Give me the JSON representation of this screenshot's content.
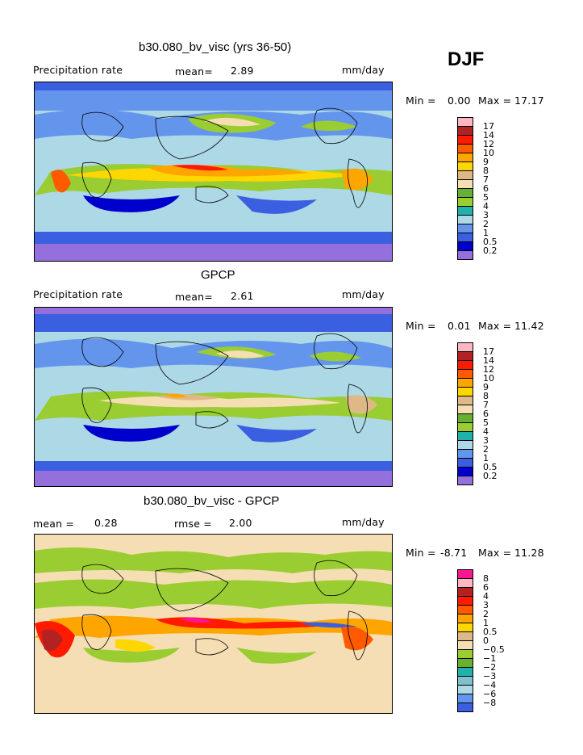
{
  "season": "DJF",
  "colors": {
    "full": [
      "#9370db",
      "#0000cd",
      "#3a5fe0",
      "#6495ed",
      "#add8e6",
      "#20b2aa",
      "#9acd32",
      "#66b032",
      "#f5deb3",
      "#deb887",
      "#ffd700",
      "#ffa500",
      "#ff5a00",
      "#ff1a00",
      "#b22222",
      "#ffb6c1",
      "#ff1493"
    ],
    "diff": [
      "#9370db",
      "#0000cd",
      "#3a5fe0",
      "#6495ed",
      "#add8e6",
      "#7ec0cc",
      "#20b2aa",
      "#66b032",
      "#9acd32",
      "#f5deb3",
      "#deb887",
      "#ffd700",
      "#ffa500",
      "#ff5a00",
      "#ff1a00",
      "#b22222",
      "#ffb6c1",
      "#ff1493"
    ]
  },
  "panels": [
    {
      "title": "b30.080_bv_visc (yrs 36-50)",
      "left_label": "Precipitation rate",
      "mean_label": "mean=",
      "mean_value": "2.89",
      "units": "mm/day",
      "min_label": "Min =",
      "min_value": "0.00",
      "max_label": "Max =",
      "max_value": "17.17",
      "legend_labels": [
        "17",
        "14",
        "12",
        "10",
        "9",
        "8",
        "7",
        "6",
        "5",
        "4",
        "3",
        "2",
        "1",
        "0.5",
        "0.2"
      ]
    },
    {
      "title": "GPCP",
      "left_label": "Precipitation rate",
      "mean_label": "mean=",
      "mean_value": "2.61",
      "units": "mm/day",
      "min_label": "Min =",
      "min_value": "0.01",
      "max_label": "Max =",
      "max_value": "11.42",
      "legend_labels": [
        "17",
        "14",
        "12",
        "10",
        "9",
        "8",
        "7",
        "6",
        "5",
        "4",
        "3",
        "2",
        "1",
        "0.5",
        "0.2"
      ]
    },
    {
      "title": "b30.080_bv_visc - GPCP",
      "left_label": "mean =",
      "mean_label": "",
      "mean_value": "0.28",
      "rmse_label": "rmse =",
      "rmse_value": "2.00",
      "units": "mm/day",
      "min_label": "Min =",
      "min_value": "-8.71",
      "max_label": "Max =",
      "max_value": "11.28",
      "legend_labels": [
        "8",
        "6",
        "4",
        "3",
        "2",
        "1",
        "0.5",
        "0",
        "−0.5",
        "−1",
        "−2",
        "−3",
        "−4",
        "−6",
        "−8"
      ]
    }
  ]
}
